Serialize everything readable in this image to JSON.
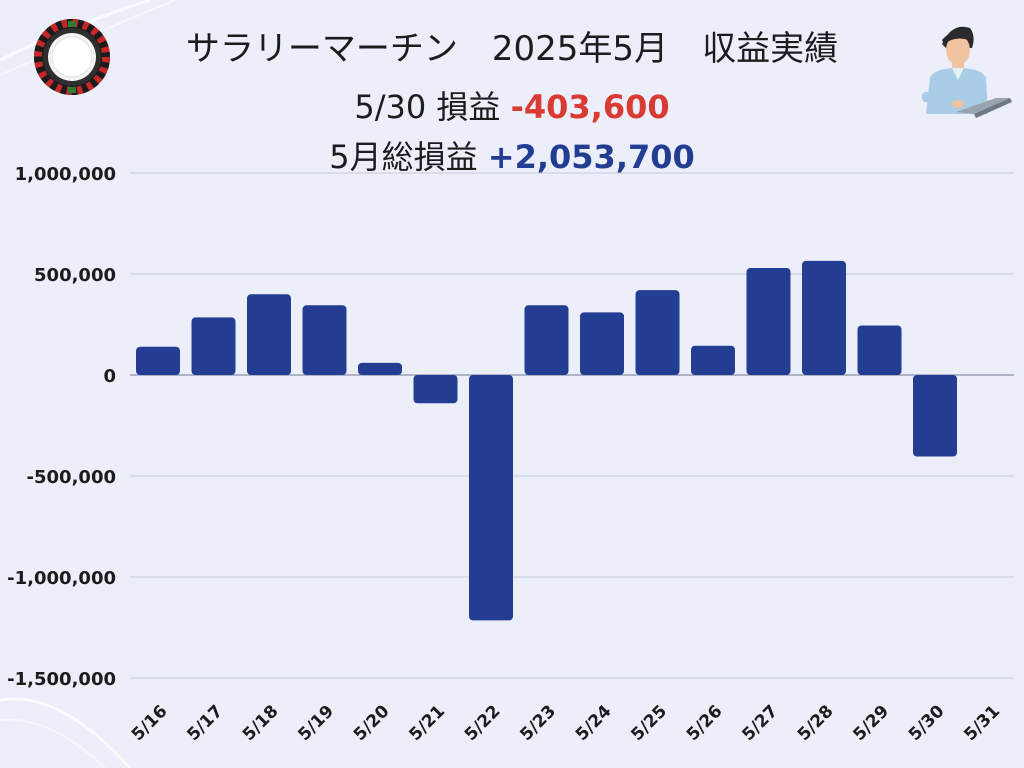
{
  "header": {
    "title": "サラリーマーチン　2025年5月　収益実績",
    "day_label": "5/30 損益",
    "day_value": "-403,600",
    "total_label": "5月総損益",
    "total_value": "+2,053,700"
  },
  "icons": {
    "left": "roulette-wheel-icon",
    "right": "businessman-laptop-icon"
  },
  "colors": {
    "bar": "#233d93",
    "negative_text": "#d93a32",
    "positive_text": "#233d93",
    "background": "#eceef9"
  },
  "chart_data": {
    "type": "bar",
    "categories": [
      "5/16",
      "5/17",
      "5/18",
      "5/19",
      "5/20",
      "5/21",
      "5/22",
      "5/23",
      "5/24",
      "5/25",
      "5/26",
      "5/27",
      "5/28",
      "5/29",
      "5/30",
      "5/31"
    ],
    "values": [
      140000,
      285000,
      400000,
      345000,
      60000,
      -140000,
      -1215000,
      345000,
      310000,
      420000,
      145000,
      530000,
      565000,
      245000,
      -403600,
      null
    ],
    "ylim": [
      -1500000,
      1000000
    ],
    "yticks": [
      1000000,
      500000,
      0,
      -500000,
      -1000000,
      -1500000
    ],
    "ytick_labels": [
      "1,000,000",
      "500,000",
      "0",
      "-500,000",
      "-1,000,000",
      "-1,500,000"
    ],
    "title": "",
    "xlabel": "",
    "ylabel": "",
    "grid": true
  }
}
